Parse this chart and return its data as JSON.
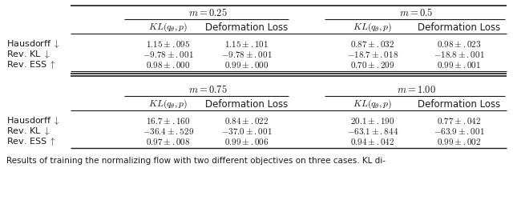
{
  "caption": "Results of training the normalizing flow with two different objectives on three cases. KL di-",
  "sec_headers": [
    "$m = 0.25$",
    "$m = 0.5$",
    "$m = 0.75$",
    "$m = 1.00$"
  ],
  "col_header_kl": "$KL(q_{\\theta},p)$",
  "col_header_def": "Deformation Loss",
  "row_labels": [
    "Hausdorff $\\downarrow$",
    "Rev. KL $\\downarrow$",
    "Rev. ESS $\\uparrow$"
  ],
  "top_left_kl": [
    "$1.15 \\pm .095$",
    "$-9.78 \\pm .001$",
    "$0.98 \\pm .000$"
  ],
  "top_left_def": [
    "$1.15 \\pm .101$",
    "$-9.78 \\pm .001$",
    "$0.99 \\pm .000$"
  ],
  "top_right_kl": [
    "$0.87 \\pm .032$",
    "$-18.7 \\pm .018$",
    "$0.70 \\pm .209$"
  ],
  "top_right_def": [
    "$0.98 \\pm .023$",
    "$-18.8 \\pm .001$",
    "$0.99 \\pm .001$"
  ],
  "bot_left_kl": [
    "$16.7 \\pm .160$",
    "$-36.4 \\pm .529$",
    "$0.97 \\pm .008$"
  ],
  "bot_left_def": [
    "$0.84 \\pm .022$",
    "$-37.0 \\pm .001$",
    "$0.99 \\pm .006$"
  ],
  "bot_right_kl": [
    "$20.1 \\pm .190$",
    "$-63.1 \\pm .844$",
    "$0.94 \\pm .042$"
  ],
  "bot_right_def": [
    "$0.77 \\pm .042$",
    "$-63.9 \\pm .001$",
    "$0.99 \\pm .002$"
  ],
  "background_color": "#ffffff",
  "text_color": "#1a1a1a",
  "fs_data": 8.0,
  "fs_header": 8.5,
  "fs_section": 9.0,
  "fs_caption": 7.5
}
